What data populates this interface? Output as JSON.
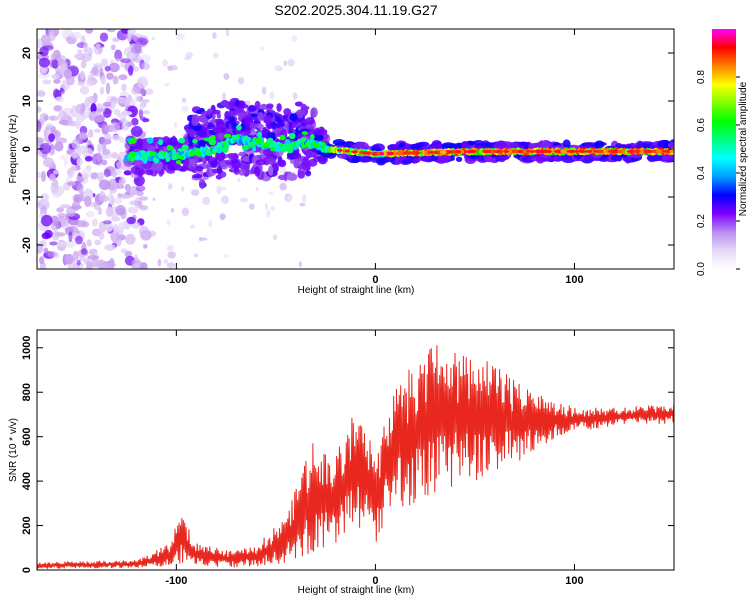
{
  "title": "S202.2025.304.11.19.G27",
  "chart_data": [
    {
      "type": "heatmap",
      "name": "spectrogram",
      "xlabel": "Height of straight line (km)",
      "ylabel": "Frequency (Hz)",
      "xlim": [
        -170,
        150
      ],
      "ylim": [
        -25,
        25
      ],
      "xticks": [
        -100,
        0,
        100
      ],
      "yticks": [
        -20,
        -10,
        0,
        10,
        20
      ],
      "colorbar": {
        "label": "Normalized spectral amplitude",
        "range": [
          0,
          1
        ],
        "ticks": [
          "0.0",
          "0.2",
          "0.4",
          "0.6",
          "0.8"
        ],
        "tick_values": [
          0.0,
          0.2,
          0.4,
          0.6,
          0.8
        ],
        "colors": [
          "#ffffff",
          "#e6d9f7",
          "#b98df0",
          "#8000ff",
          "#0000ff",
          "#00a0ff",
          "#00ffff",
          "#00ff80",
          "#00ff00",
          "#80ff00",
          "#ffff00",
          "#ff8000",
          "#ff0000",
          "#ff00ff"
        ]
      },
      "ridge": {
        "description_points_km_hz": [
          [
            -125,
            -1.5
          ],
          [
            -100,
            -1.5
          ],
          [
            -80,
            0
          ],
          [
            -70,
            2
          ],
          [
            -55,
            1
          ],
          [
            -45,
            0
          ],
          [
            -35,
            1.5
          ],
          [
            -25,
            0
          ],
          [
            0,
            -1
          ],
          [
            50,
            -0.5
          ],
          [
            100,
            -0.5
          ],
          [
            150,
            -0.5
          ]
        ]
      }
    },
    {
      "type": "line",
      "name": "snr",
      "xlabel": "Height of straight line (km)",
      "ylabel": "SNR (10 * v/v)",
      "xlim": [
        -170,
        150
      ],
      "ylim": [
        0,
        1080
      ],
      "xticks": [
        -100,
        0,
        100
      ],
      "yticks": [
        0,
        200,
        400,
        600,
        800,
        1000
      ],
      "color": "#e8281e",
      "envelope": [
        {
          "x": -170,
          "low": 5,
          "high": 35
        },
        {
          "x": -120,
          "low": 10,
          "high": 45
        },
        {
          "x": -103,
          "low": 15,
          "high": 120
        },
        {
          "x": -98,
          "low": 30,
          "high": 265
        },
        {
          "x": -90,
          "low": 20,
          "high": 120
        },
        {
          "x": -75,
          "low": 10,
          "high": 90
        },
        {
          "x": -60,
          "low": 15,
          "high": 110
        },
        {
          "x": -45,
          "low": 30,
          "high": 240
        },
        {
          "x": -37,
          "low": 60,
          "high": 455
        },
        {
          "x": -32,
          "low": 80,
          "high": 575
        },
        {
          "x": -20,
          "low": 120,
          "high": 520
        },
        {
          "x": -12,
          "low": 180,
          "high": 690
        },
        {
          "x": -4,
          "low": 200,
          "high": 620
        },
        {
          "x": 0,
          "low": 110,
          "high": 510
        },
        {
          "x": 8,
          "low": 300,
          "high": 770
        },
        {
          "x": 15,
          "low": 280,
          "high": 890
        },
        {
          "x": 25,
          "low": 330,
          "high": 950
        },
        {
          "x": 30,
          "low": 350,
          "high": 1075
        },
        {
          "x": 40,
          "low": 380,
          "high": 980
        },
        {
          "x": 50,
          "low": 400,
          "high": 940
        },
        {
          "x": 60,
          "low": 430,
          "high": 1010
        },
        {
          "x": 70,
          "low": 480,
          "high": 850
        },
        {
          "x": 80,
          "low": 530,
          "high": 790
        },
        {
          "x": 90,
          "low": 580,
          "high": 770
        },
        {
          "x": 100,
          "low": 620,
          "high": 730
        },
        {
          "x": 120,
          "low": 650,
          "high": 730
        },
        {
          "x": 150,
          "low": 660,
          "high": 750
        }
      ]
    }
  ]
}
